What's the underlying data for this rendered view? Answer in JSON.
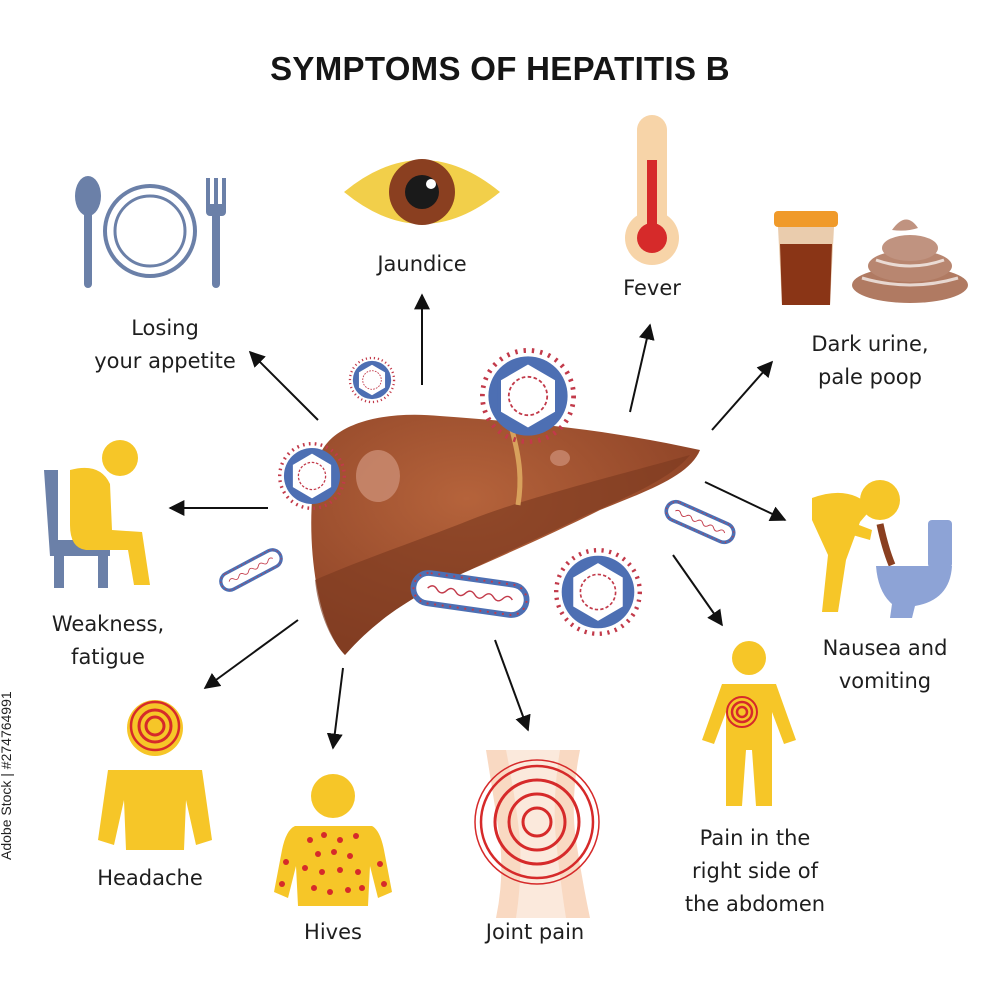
{
  "title": "SYMPTOMS OF HEPATITIS B",
  "symptoms": {
    "appetite": "Losing\nyour appetite",
    "jaundice": "Jaundice",
    "fever": "Fever",
    "urine": "Dark urine,\npale poop",
    "weakness": "Weakness,\nfatigue",
    "nausea": "Nausea and\nvomiting",
    "headache": "Headache",
    "hives": "Hives",
    "joint": "Joint pain",
    "abdomen": "Pain in the\nright side of\nthe abdomen"
  },
  "watermark": "Adobe Stock | #274764991",
  "colors": {
    "liver": "#a0502e",
    "figure": "#f6c628",
    "utensils": "#6b80a8",
    "pain": "#d62a2a",
    "virus": "#4a6db5"
  }
}
